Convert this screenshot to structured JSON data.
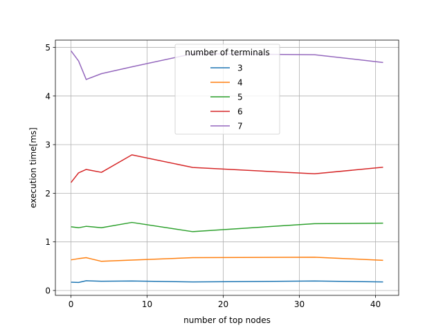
{
  "chart_data": {
    "type": "line",
    "title": "",
    "xlabel": "number of top nodes",
    "ylabel": "execution time[ms]",
    "xlim": [
      -2.05,
      43.05
    ],
    "ylim": [
      -0.1,
      5.15
    ],
    "xticks": [
      0,
      10,
      20,
      30,
      40
    ],
    "xtick_labels": [
      "0",
      "10",
      "20",
      "30",
      "40"
    ],
    "yticks": [
      0,
      1,
      2,
      3,
      4,
      5
    ],
    "ytick_labels": [
      "0",
      "1",
      "2",
      "3",
      "4",
      "5"
    ],
    "grid": true,
    "legend": {
      "title": "number of terminals",
      "placement": "upper center"
    },
    "x": [
      0,
      1,
      2,
      4,
      8,
      16,
      32,
      41
    ],
    "series": [
      {
        "name": "3",
        "color": "#1f77b4",
        "values": [
          0.17,
          0.165,
          0.2,
          0.19,
          0.195,
          0.175,
          0.195,
          0.175
        ]
      },
      {
        "name": "4",
        "color": "#ff7f0e",
        "values": [
          0.63,
          0.655,
          0.675,
          0.6,
          0.625,
          0.675,
          0.685,
          0.62
        ]
      },
      {
        "name": "5",
        "color": "#2ca02c",
        "values": [
          1.31,
          1.29,
          1.32,
          1.29,
          1.4,
          1.21,
          1.375,
          1.385
        ]
      },
      {
        "name": "6",
        "color": "#d62728",
        "values": [
          2.22,
          2.42,
          2.49,
          2.43,
          2.79,
          2.53,
          2.4,
          2.535
        ]
      },
      {
        "name": "7",
        "color": "#9467bd",
        "values": [
          4.93,
          4.72,
          4.34,
          4.46,
          4.6,
          4.87,
          4.85,
          4.69
        ]
      }
    ]
  }
}
